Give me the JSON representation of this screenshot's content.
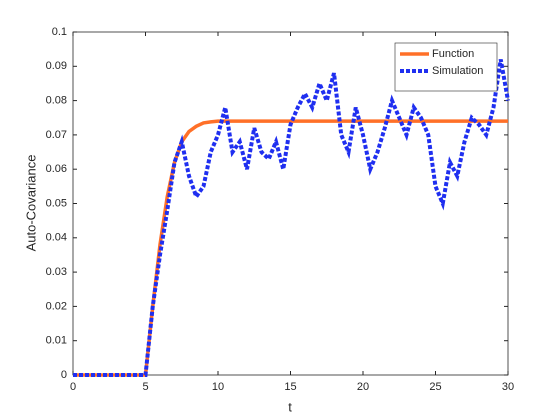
{
  "chart_data": {
    "type": "line",
    "xlabel": "t",
    "ylabel": "Auto-Covariance",
    "x": [
      0,
      0.5,
      1,
      1.5,
      2,
      2.5,
      3,
      3.5,
      4,
      4.5,
      5,
      5.5,
      6,
      6.5,
      7,
      7.5,
      8,
      8.5,
      9,
      9.5,
      10,
      10.5,
      11,
      11.5,
      12,
      12.5,
      13,
      13.5,
      14,
      14.5,
      15,
      15.5,
      16,
      16.5,
      17,
      17.5,
      18,
      18.5,
      19,
      19.5,
      20,
      20.5,
      21,
      21.5,
      22,
      22.5,
      23,
      23.5,
      24,
      24.5,
      25,
      25.5,
      26,
      26.5,
      27,
      27.5,
      28,
      28.5,
      29,
      29.5,
      30
    ],
    "series": [
      {
        "name": "Function",
        "color": "#ff7028",
        "style": "solid",
        "values": [
          0,
          0,
          0,
          0,
          0,
          0,
          0,
          0,
          0,
          0,
          0,
          0.02,
          0.038,
          0.052,
          0.062,
          0.068,
          0.071,
          0.0725,
          0.0735,
          0.0738,
          0.074,
          0.074,
          0.074,
          0.074,
          0.074,
          0.074,
          0.074,
          0.074,
          0.074,
          0.074,
          0.074,
          0.074,
          0.074,
          0.074,
          0.074,
          0.074,
          0.074,
          0.074,
          0.074,
          0.074,
          0.074,
          0.074,
          0.074,
          0.074,
          0.074,
          0.074,
          0.074,
          0.074,
          0.074,
          0.074,
          0.074,
          0.074,
          0.074,
          0.074,
          0.074,
          0.074,
          0.074,
          0.074,
          0.074,
          0.074,
          0.074
        ]
      },
      {
        "name": "Simulation",
        "color": "#1f2ff0",
        "style": "dotted",
        "values": [
          0,
          0,
          0,
          0,
          0,
          0,
          0,
          0,
          0,
          0,
          0,
          0.02,
          0.035,
          0.048,
          0.062,
          0.068,
          0.058,
          0.052,
          0.055,
          0.065,
          0.07,
          0.078,
          0.065,
          0.068,
          0.06,
          0.072,
          0.065,
          0.063,
          0.068,
          0.06,
          0.073,
          0.078,
          0.082,
          0.078,
          0.085,
          0.08,
          0.088,
          0.07,
          0.065,
          0.078,
          0.07,
          0.06,
          0.065,
          0.072,
          0.08,
          0.075,
          0.07,
          0.078,
          0.075,
          0.07,
          0.055,
          0.05,
          0.062,
          0.058,
          0.068,
          0.075,
          0.073,
          0.07,
          0.078,
          0.092,
          0.08
        ]
      }
    ],
    "xlim": [
      0,
      30
    ],
    "xticks": [
      0,
      5,
      10,
      15,
      20,
      25,
      30
    ],
    "ylim": [
      0,
      0.1
    ],
    "yticks": [
      0,
      0.01,
      0.02,
      0.03,
      0.04,
      0.05,
      0.06,
      0.07,
      0.08,
      0.09,
      0.1
    ],
    "grid": false,
    "legend": "top-right"
  }
}
